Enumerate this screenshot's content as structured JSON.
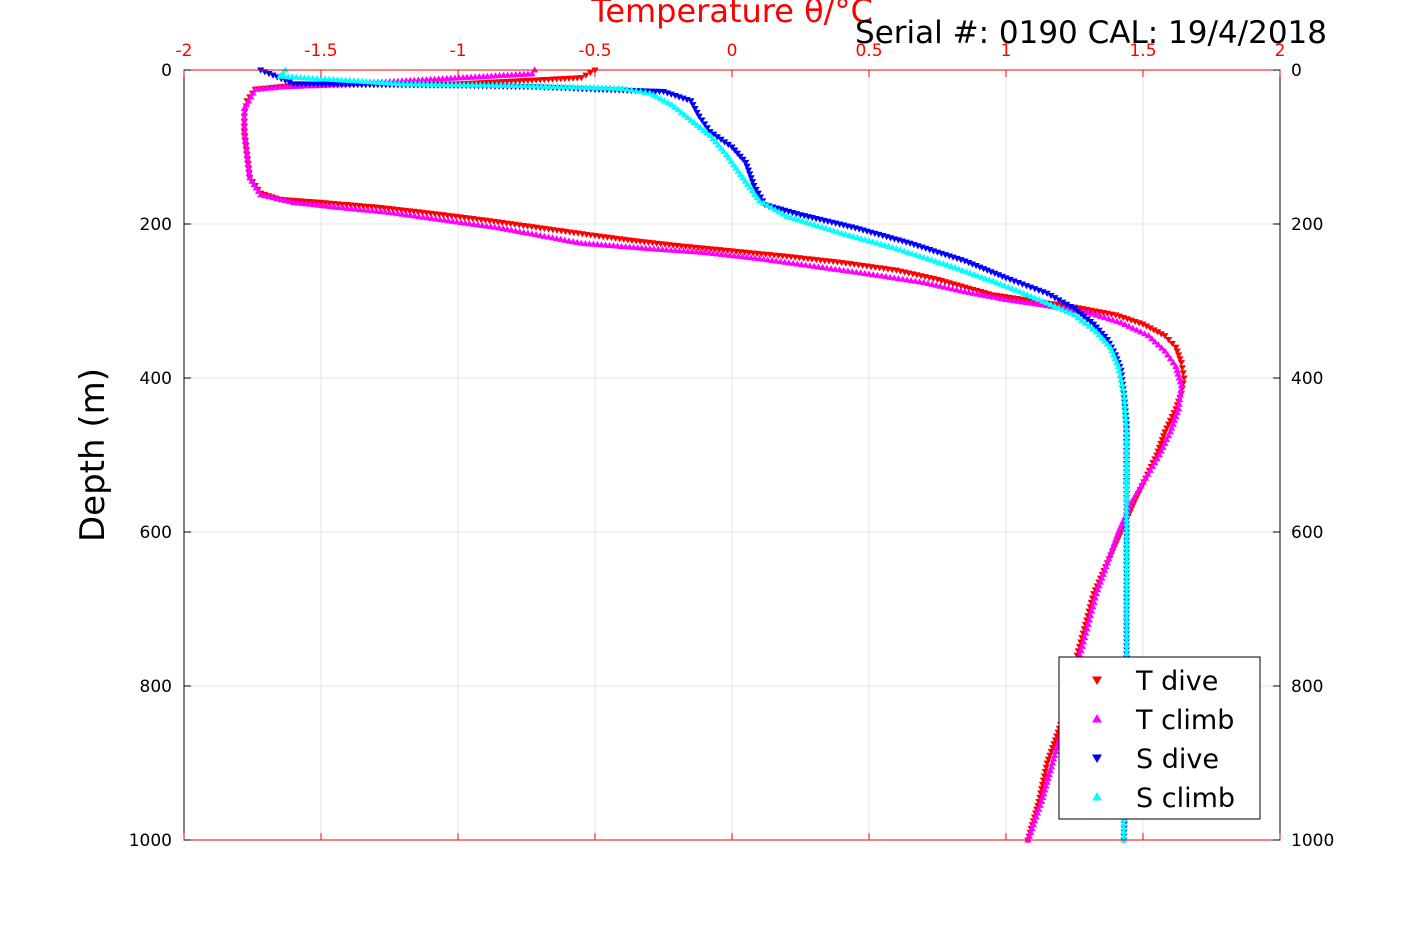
{
  "chart_data": {
    "type": "scatter",
    "title": "Temperature θ/°C",
    "serial_text": "Serial #: 0190  CAL: 19/4/2018",
    "ylabel": "Depth (m)",
    "xlim": [
      -2,
      2
    ],
    "ylim": [
      0,
      1000
    ],
    "y_reversed": true,
    "x_ticks": [
      "-2",
      "-1.5",
      "-1",
      "-0.5",
      "0",
      "0.5",
      "1",
      "1.5",
      "2"
    ],
    "y_ticks": [
      "0",
      "200",
      "400",
      "600",
      "800",
      "1000"
    ],
    "grid": true,
    "legend_position": "bottom-right",
    "colors": {
      "temperature_axis": "#ff0000",
      "grid": "#e6e6e6"
    },
    "series": [
      {
        "name": "T dive",
        "marker": "triangle-down",
        "color": "#ff0000",
        "points": [
          [
            -0.5,
            0
          ],
          [
            -0.55,
            10
          ],
          [
            -1.0,
            18
          ],
          [
            -1.6,
            20
          ],
          [
            -1.74,
            25
          ],
          [
            -1.77,
            40
          ],
          [
            -1.78,
            60
          ],
          [
            -1.78,
            80
          ],
          [
            -1.77,
            110
          ],
          [
            -1.76,
            140
          ],
          [
            -1.72,
            160
          ],
          [
            -1.65,
            168
          ],
          [
            -1.5,
            172
          ],
          [
            -1.3,
            178
          ],
          [
            -1.1,
            186
          ],
          [
            -0.9,
            195
          ],
          [
            -0.7,
            205
          ],
          [
            -0.5,
            215
          ],
          [
            -0.35,
            222
          ],
          [
            -0.2,
            228
          ],
          [
            0.0,
            235
          ],
          [
            0.2,
            242
          ],
          [
            0.4,
            250
          ],
          [
            0.6,
            260
          ],
          [
            0.75,
            272
          ],
          [
            0.85,
            282
          ],
          [
            0.95,
            292
          ],
          [
            1.1,
            300
          ],
          [
            1.25,
            308
          ],
          [
            1.4,
            318
          ],
          [
            1.5,
            330
          ],
          [
            1.58,
            345
          ],
          [
            1.62,
            360
          ],
          [
            1.64,
            380
          ],
          [
            1.65,
            400
          ],
          [
            1.64,
            420
          ],
          [
            1.62,
            440
          ],
          [
            1.58,
            470
          ],
          [
            1.55,
            500
          ],
          [
            1.51,
            530
          ],
          [
            1.47,
            560
          ],
          [
            1.42,
            600
          ],
          [
            1.37,
            640
          ],
          [
            1.32,
            680
          ],
          [
            1.29,
            720
          ],
          [
            1.26,
            760
          ],
          [
            1.24,
            800
          ],
          [
            1.2,
            850
          ],
          [
            1.15,
            900
          ],
          [
            1.12,
            950
          ],
          [
            1.08,
            1000
          ]
        ]
      },
      {
        "name": "T climb",
        "marker": "triangle-up",
        "color": "#ff00ff",
        "points": [
          [
            -0.72,
            0
          ],
          [
            -0.73,
            5
          ],
          [
            -1.5,
            20
          ],
          [
            -1.65,
            22
          ],
          [
            -1.74,
            25
          ],
          [
            -1.78,
            50
          ],
          [
            -1.78,
            80
          ],
          [
            -1.77,
            110
          ],
          [
            -1.76,
            140
          ],
          [
            -1.72,
            162
          ],
          [
            -1.6,
            172
          ],
          [
            -1.45,
            178
          ],
          [
            -1.25,
            185
          ],
          [
            -1.05,
            195
          ],
          [
            -0.85,
            205
          ],
          [
            -0.7,
            215
          ],
          [
            -0.55,
            225
          ],
          [
            -0.3,
            232
          ],
          [
            -0.1,
            237
          ],
          [
            0.1,
            245
          ],
          [
            0.3,
            255
          ],
          [
            0.5,
            265
          ],
          [
            0.7,
            276
          ],
          [
            0.85,
            288
          ],
          [
            1.0,
            298
          ],
          [
            1.15,
            306
          ],
          [
            1.3,
            315
          ],
          [
            1.42,
            328
          ],
          [
            1.52,
            345
          ],
          [
            1.58,
            365
          ],
          [
            1.62,
            385
          ],
          [
            1.64,
            410
          ],
          [
            1.63,
            440
          ],
          [
            1.6,
            470
          ],
          [
            1.56,
            500
          ],
          [
            1.51,
            530
          ],
          [
            1.46,
            560
          ],
          [
            1.41,
            600
          ],
          [
            1.37,
            640
          ],
          [
            1.33,
            680
          ],
          [
            1.3,
            720
          ],
          [
            1.27,
            760
          ],
          [
            1.24,
            800
          ],
          [
            1.21,
            850
          ],
          [
            1.17,
            900
          ],
          [
            1.13,
            950
          ],
          [
            1.08,
            1000
          ]
        ]
      },
      {
        "name": "S dive",
        "marker": "triangle-down",
        "color": "#0000ff",
        "points": [
          [
            -1.72,
            0
          ],
          [
            -1.6,
            18
          ],
          [
            -1.0,
            20
          ],
          [
            -0.7,
            22
          ],
          [
            -0.5,
            25
          ],
          [
            -0.25,
            28
          ],
          [
            -0.15,
            40
          ],
          [
            -0.12,
            60
          ],
          [
            -0.08,
            80
          ],
          [
            0.0,
            100
          ],
          [
            0.05,
            120
          ],
          [
            0.08,
            150
          ],
          [
            0.12,
            175
          ],
          [
            0.25,
            188
          ],
          [
            0.45,
            205
          ],
          [
            0.65,
            225
          ],
          [
            0.85,
            248
          ],
          [
            1.0,
            270
          ],
          [
            1.15,
            290
          ],
          [
            1.25,
            310
          ],
          [
            1.32,
            330
          ],
          [
            1.37,
            350
          ],
          [
            1.4,
            370
          ],
          [
            1.42,
            390
          ],
          [
            1.43,
            420
          ],
          [
            1.44,
            460
          ],
          [
            1.44,
            500
          ],
          [
            1.44,
            550
          ],
          [
            1.44,
            600
          ],
          [
            1.44,
            700
          ],
          [
            1.44,
            800
          ],
          [
            1.44,
            900
          ],
          [
            1.43,
            1000
          ]
        ]
      },
      {
        "name": "S climb",
        "marker": "triangle-up",
        "color": "#00ffff",
        "points": [
          [
            -1.63,
            0
          ],
          [
            -1.65,
            8
          ],
          [
            -1.2,
            18
          ],
          [
            -0.8,
            20
          ],
          [
            -0.4,
            24
          ],
          [
            -0.3,
            30
          ],
          [
            -0.22,
            45
          ],
          [
            -0.15,
            65
          ],
          [
            -0.08,
            85
          ],
          [
            -0.02,
            110
          ],
          [
            0.04,
            140
          ],
          [
            0.1,
            170
          ],
          [
            0.2,
            190
          ],
          [
            0.4,
            212
          ],
          [
            0.6,
            232
          ],
          [
            0.8,
            255
          ],
          [
            0.98,
            278
          ],
          [
            1.12,
            298
          ],
          [
            1.25,
            318
          ],
          [
            1.33,
            340
          ],
          [
            1.38,
            360
          ],
          [
            1.41,
            385
          ],
          [
            1.43,
            420
          ],
          [
            1.44,
            470
          ],
          [
            1.44,
            520
          ],
          [
            1.44,
            600
          ],
          [
            1.44,
            700
          ],
          [
            1.44,
            800
          ],
          [
            1.43,
            900
          ],
          [
            1.43,
            1000
          ]
        ]
      }
    ]
  }
}
